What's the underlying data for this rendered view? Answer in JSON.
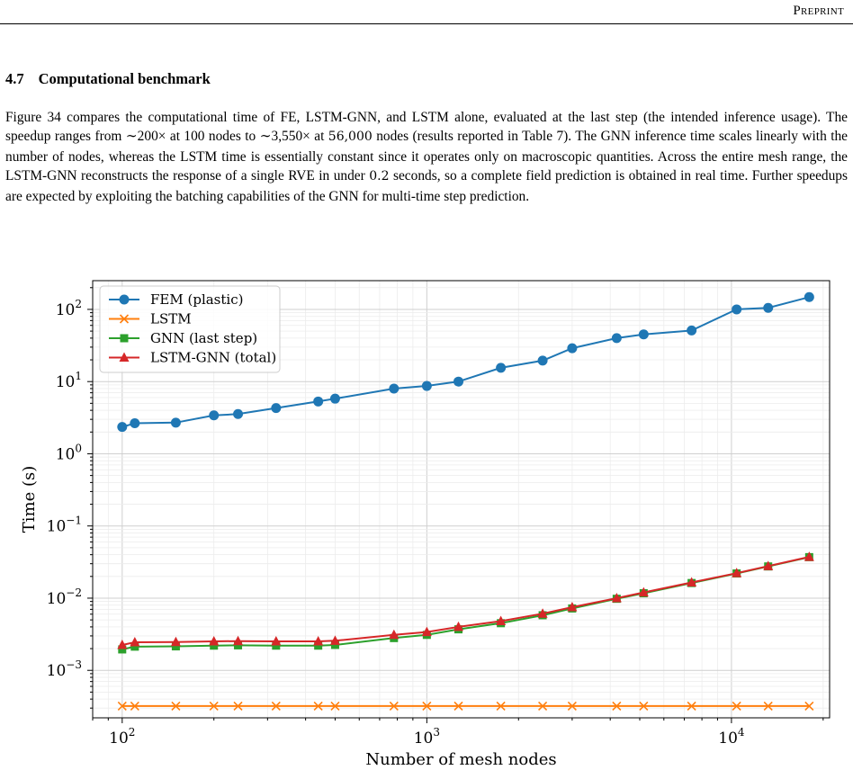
{
  "header": {
    "running_head": "Preprint"
  },
  "section": {
    "number": "4.7",
    "title": "Computational benchmark"
  },
  "paragraph": {
    "part1": "Figure 34 compares the computational time of FE, LSTM-GNN, and LSTM alone, evaluated at the last step (the intended inference usage). The speedup ranges from ∼200× at 100 nodes to ∼3,550× at ",
    "math_56000": "56,000",
    "part2": " nodes (results reported in Table 7). The GNN inference time scales linearly with the number of nodes, whereas the LSTM time is essentially constant since it operates only on macroscopic quantities. Across the entire mesh range, the LSTM-GNN reconstructs the response of a single RVE in under ",
    "math_02": "0.2",
    "part3": " seconds, so a complete field prediction is obtained in real time. Further speedups are expected by exploiting the batching capabilities of the GNN for multi-time step prediction."
  },
  "chart_data": {
    "type": "line",
    "xlabel": "Number of mesh nodes",
    "ylabel": "Time (s)",
    "xscale": "log",
    "yscale": "log",
    "xlim": [
      80,
      21000
    ],
    "ylim": [
      0.00022,
      250
    ],
    "grid": true,
    "legend_position": "top-left",
    "x_ticks": [
      {
        "value": 100,
        "base": "10",
        "exp": "2"
      },
      {
        "value": 1000,
        "base": "10",
        "exp": "3"
      },
      {
        "value": 10000,
        "base": "10",
        "exp": "4"
      }
    ],
    "y_ticks": [
      {
        "value": 0.001,
        "base": "10",
        "exp": "−3"
      },
      {
        "value": 0.01,
        "base": "10",
        "exp": "−2"
      },
      {
        "value": 0.1,
        "base": "10",
        "exp": "−1"
      },
      {
        "value": 1,
        "base": "10",
        "exp": "0"
      },
      {
        "value": 10,
        "base": "10",
        "exp": "1"
      },
      {
        "value": 100,
        "base": "10",
        "exp": "2"
      }
    ],
    "x": [
      100,
      110,
      150,
      200,
      240,
      320,
      440,
      500,
      780,
      1000,
      1270,
      1750,
      2400,
      3000,
      4200,
      5150,
      7400,
      10400,
      13200,
      18000
    ],
    "series": [
      {
        "name": "FEM (plastic)",
        "color": "#1f77b4",
        "marker": "circle",
        "values": [
          2.35,
          2.65,
          2.7,
          3.4,
          3.55,
          4.3,
          5.3,
          5.8,
          8.0,
          8.7,
          10.0,
          15.5,
          19.5,
          29.0,
          40.0,
          45.0,
          51.0,
          100.0,
          105.0,
          148.0
        ]
      },
      {
        "name": "LSTM",
        "color": "#ff7f0e",
        "marker": "x",
        "values": [
          0.00032,
          0.00032,
          0.00032,
          0.00032,
          0.00032,
          0.00032,
          0.00032,
          0.00032,
          0.00032,
          0.00032,
          0.00032,
          0.00032,
          0.00032,
          0.00032,
          0.00032,
          0.00032,
          0.00032,
          0.00032,
          0.00032,
          0.00032
        ]
      },
      {
        "name": "GNN (last step)",
        "color": "#2ca02c",
        "marker": "square",
        "values": [
          0.00195,
          0.00213,
          0.00215,
          0.0022,
          0.00222,
          0.0022,
          0.0022,
          0.00225,
          0.0028,
          0.0031,
          0.0037,
          0.0045,
          0.0058,
          0.0072,
          0.0098,
          0.0117,
          0.0162,
          0.022,
          0.0275,
          0.037
        ]
      },
      {
        "name": "LSTM-GNN (total)",
        "color": "#d62728",
        "marker": "triangle",
        "values": [
          0.00225,
          0.00245,
          0.00247,
          0.00252,
          0.00254,
          0.00252,
          0.00252,
          0.00257,
          0.0031,
          0.0034,
          0.004,
          0.0048,
          0.0061,
          0.0075,
          0.01,
          0.012,
          0.0165,
          0.0222,
          0.0278,
          0.0373
        ]
      }
    ]
  }
}
